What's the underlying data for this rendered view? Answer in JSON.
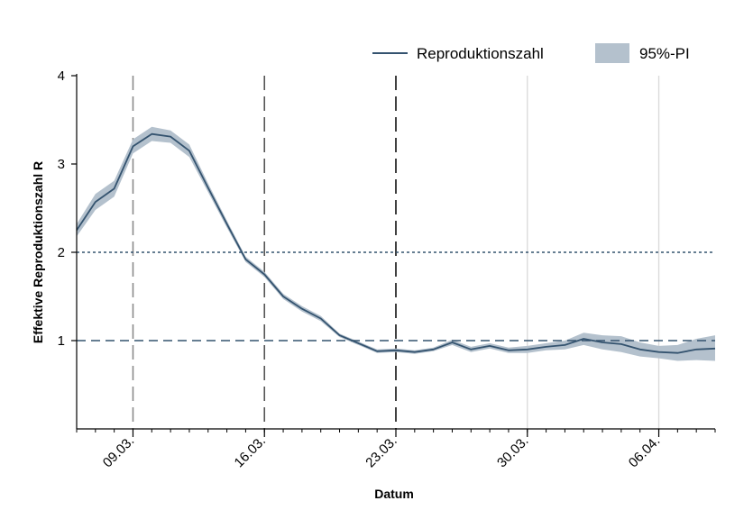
{
  "chart_data": {
    "type": "line",
    "title": "",
    "xlabel": "Datum",
    "ylabel": "Effektive Reproduktionszahl R",
    "xlim": [
      "2020-03-06",
      "2020-04-09"
    ],
    "ylim": [
      0,
      4
    ],
    "yticks": [
      1,
      2,
      3,
      4
    ],
    "xticks": [
      {
        "date": "2020-03-09",
        "label": "09.03."
      },
      {
        "date": "2020-03-16",
        "label": "16.03."
      },
      {
        "date": "2020-03-23",
        "label": "23.03."
      },
      {
        "date": "2020-03-30",
        "label": "30.03."
      },
      {
        "date": "2020-04-06",
        "label": "06.04."
      }
    ],
    "legend_position": "top-right",
    "legend": [
      {
        "label": "Reproduktionszahl",
        "kind": "line"
      },
      {
        "label": "95%-PI",
        "kind": "band"
      }
    ],
    "colors": {
      "line": "#34536f",
      "band": "#b4c1cd",
      "reference": "#34536f",
      "event": "#555555",
      "grid": "#d9d9d9"
    },
    "reference_lines": [
      {
        "y": 2,
        "style": "dotted"
      },
      {
        "y": 1,
        "style": "dashed"
      }
    ],
    "event_lines": [
      {
        "date": "2020-03-09",
        "color": "#8a8a8a"
      },
      {
        "date": "2020-03-16",
        "color": "#555555"
      },
      {
        "date": "2020-03-23",
        "color": "#111111"
      }
    ],
    "grid_lines": [
      "2020-03-30",
      "2020-04-06"
    ],
    "series": [
      {
        "name": "Reproduktionszahl",
        "x": [
          "2020-03-06",
          "2020-03-07",
          "2020-03-08",
          "2020-03-09",
          "2020-03-10",
          "2020-03-11",
          "2020-03-12",
          "2020-03-13",
          "2020-03-14",
          "2020-03-15",
          "2020-03-16",
          "2020-03-17",
          "2020-03-18",
          "2020-03-19",
          "2020-03-20",
          "2020-03-21",
          "2020-03-22",
          "2020-03-23",
          "2020-03-24",
          "2020-03-25",
          "2020-03-26",
          "2020-03-27",
          "2020-03-28",
          "2020-03-29",
          "2020-03-30",
          "2020-03-31",
          "2020-04-01",
          "2020-04-02",
          "2020-04-03",
          "2020-04-04",
          "2020-04-05",
          "2020-04-06",
          "2020-04-07",
          "2020-04-08",
          "2020-04-09"
        ],
        "values": [
          2.25,
          2.57,
          2.72,
          3.2,
          3.34,
          3.31,
          3.15,
          2.73,
          2.32,
          1.92,
          1.75,
          1.5,
          1.36,
          1.25,
          1.06,
          0.97,
          0.88,
          0.89,
          0.87,
          0.9,
          0.98,
          0.9,
          0.94,
          0.89,
          0.9,
          0.93,
          0.95,
          1.02,
          0.98,
          0.96,
          0.9,
          0.87,
          0.86,
          0.9,
          0.91
        ],
        "lower": [
          2.18,
          2.48,
          2.63,
          3.12,
          3.26,
          3.24,
          3.08,
          2.68,
          2.28,
          1.89,
          1.72,
          1.47,
          1.33,
          1.22,
          1.04,
          0.95,
          0.86,
          0.87,
          0.85,
          0.88,
          0.95,
          0.87,
          0.91,
          0.86,
          0.86,
          0.89,
          0.9,
          0.95,
          0.9,
          0.87,
          0.82,
          0.8,
          0.77,
          0.78,
          0.77
        ],
        "upper": [
          2.32,
          2.66,
          2.81,
          3.28,
          3.42,
          3.38,
          3.22,
          2.78,
          2.36,
          1.95,
          1.78,
          1.53,
          1.39,
          1.28,
          1.08,
          0.99,
          0.9,
          0.91,
          0.89,
          0.92,
          1.01,
          0.93,
          0.97,
          0.92,
          0.94,
          0.97,
          1.0,
          1.09,
          1.06,
          1.05,
          0.98,
          0.94,
          0.95,
          1.02,
          1.06
        ]
      }
    ]
  }
}
